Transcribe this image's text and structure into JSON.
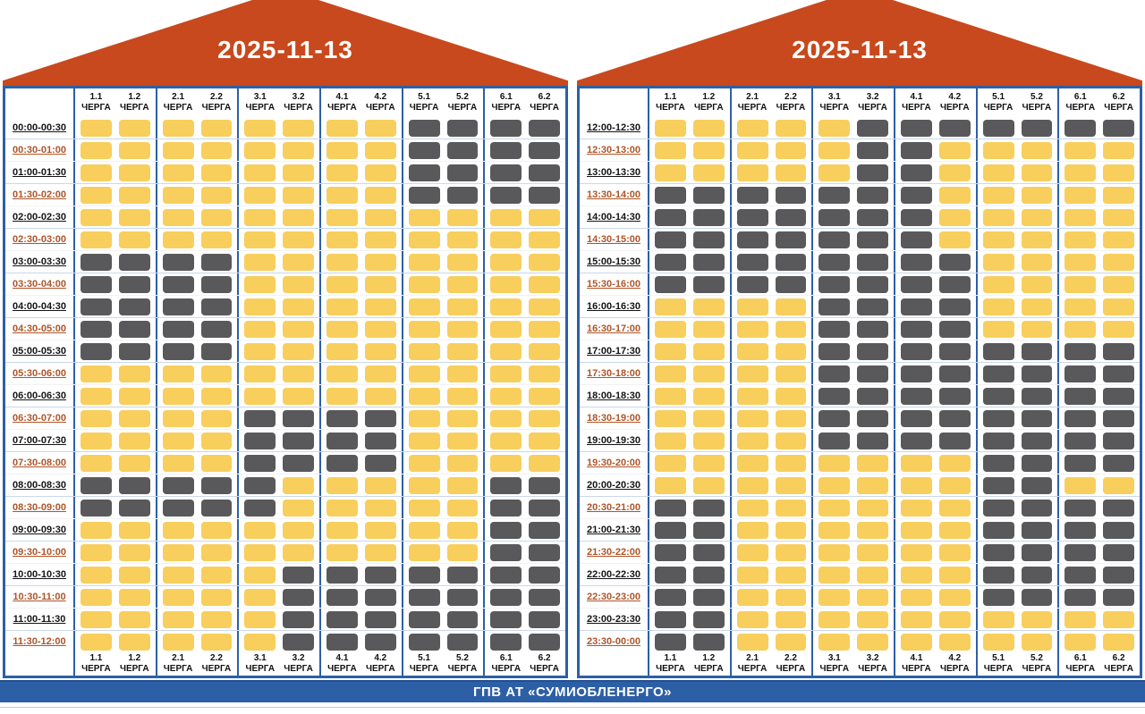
{
  "footer": {
    "label": "ГПВ АТ «СУМИОБЛЕНЕРГО»"
  },
  "column_sublabel": "ЧЕРГА",
  "colors": {
    "power_on": "#F8CE5C",
    "power_off": "#59595B",
    "frame_blue": "#2D5FA6",
    "roof_orange": "#C8491D",
    "time_alt_text": "#AD5529",
    "date_text": "#FFFFFF"
  },
  "chart_data": [
    {
      "type": "heatmap",
      "title": "2025-11-13",
      "panel_range": "00:00-12:00",
      "x_labels": [
        "1.1",
        "1.2",
        "2.1",
        "2.2",
        "3.1",
        "3.2",
        "4.1",
        "4.2",
        "5.1",
        "5.2",
        "6.1",
        "6.2"
      ],
      "y_labels": [
        "00:00-00:30",
        "00:30-01:00",
        "01:00-01:30",
        "01:30-02:00",
        "02:00-02:30",
        "02:30-03:00",
        "03:00-03:30",
        "03:30-04:00",
        "04:00-04:30",
        "04:30-05:00",
        "05:00-05:30",
        "05:30-06:00",
        "06:00-06:30",
        "06:30-07:00",
        "07:00-07:30",
        "07:30-08:00",
        "08:00-08:30",
        "08:30-09:00",
        "09:00-09:30",
        "09:30-10:00",
        "10:00-10:30",
        "10:30-11:00",
        "11:00-11:30",
        "11:30-12:00"
      ],
      "value_meaning": {
        "1": "power on (yellow)",
        "0": "outage (grey)"
      },
      "values": [
        [
          1,
          1,
          1,
          1,
          1,
          1,
          1,
          1,
          0,
          0,
          0,
          0
        ],
        [
          1,
          1,
          1,
          1,
          1,
          1,
          1,
          1,
          0,
          0,
          0,
          0
        ],
        [
          1,
          1,
          1,
          1,
          1,
          1,
          1,
          1,
          0,
          0,
          0,
          0
        ],
        [
          1,
          1,
          1,
          1,
          1,
          1,
          1,
          1,
          0,
          0,
          0,
          0
        ],
        [
          1,
          1,
          1,
          1,
          1,
          1,
          1,
          1,
          1,
          1,
          1,
          1
        ],
        [
          1,
          1,
          1,
          1,
          1,
          1,
          1,
          1,
          1,
          1,
          1,
          1
        ],
        [
          0,
          0,
          0,
          0,
          1,
          1,
          1,
          1,
          1,
          1,
          1,
          1
        ],
        [
          0,
          0,
          0,
          0,
          1,
          1,
          1,
          1,
          1,
          1,
          1,
          1
        ],
        [
          0,
          0,
          0,
          0,
          1,
          1,
          1,
          1,
          1,
          1,
          1,
          1
        ],
        [
          0,
          0,
          0,
          0,
          1,
          1,
          1,
          1,
          1,
          1,
          1,
          1
        ],
        [
          0,
          0,
          0,
          0,
          1,
          1,
          1,
          1,
          1,
          1,
          1,
          1
        ],
        [
          1,
          1,
          1,
          1,
          1,
          1,
          1,
          1,
          1,
          1,
          1,
          1
        ],
        [
          1,
          1,
          1,
          1,
          1,
          1,
          1,
          1,
          1,
          1,
          1,
          1
        ],
        [
          1,
          1,
          1,
          1,
          0,
          0,
          0,
          0,
          1,
          1,
          1,
          1
        ],
        [
          1,
          1,
          1,
          1,
          0,
          0,
          0,
          0,
          1,
          1,
          1,
          1
        ],
        [
          1,
          1,
          1,
          1,
          0,
          0,
          0,
          0,
          1,
          1,
          1,
          1
        ],
        [
          0,
          0,
          0,
          0,
          0,
          1,
          1,
          1,
          1,
          1,
          0,
          0
        ],
        [
          0,
          0,
          0,
          0,
          0,
          1,
          1,
          1,
          1,
          1,
          0,
          0
        ],
        [
          1,
          1,
          1,
          1,
          1,
          1,
          1,
          1,
          1,
          1,
          0,
          0
        ],
        [
          1,
          1,
          1,
          1,
          1,
          1,
          1,
          1,
          1,
          1,
          0,
          0
        ],
        [
          1,
          1,
          1,
          1,
          1,
          0,
          0,
          0,
          0,
          0,
          0,
          0
        ],
        [
          1,
          1,
          1,
          1,
          1,
          0,
          0,
          0,
          0,
          0,
          0,
          0
        ],
        [
          1,
          1,
          1,
          1,
          1,
          0,
          0,
          0,
          0,
          0,
          0,
          0
        ],
        [
          1,
          1,
          1,
          1,
          1,
          0,
          0,
          0,
          0,
          0,
          0,
          0
        ]
      ]
    },
    {
      "type": "heatmap",
      "title": "2025-11-13",
      "panel_range": "12:00-24:00",
      "x_labels": [
        "1.1",
        "1.2",
        "2.1",
        "2.2",
        "3.1",
        "3.2",
        "4.1",
        "4.2",
        "5.1",
        "5.2",
        "6.1",
        "6.2"
      ],
      "y_labels": [
        "12:00-12:30",
        "12:30-13:00",
        "13:00-13:30",
        "13:30-14:00",
        "14:00-14:30",
        "14:30-15:00",
        "15:00-15:30",
        "15:30-16:00",
        "16:00-16:30",
        "16:30-17:00",
        "17:00-17:30",
        "17:30-18:00",
        "18:00-18:30",
        "18:30-19:00",
        "19:00-19:30",
        "19:30-20:00",
        "20:00-20:30",
        "20:30-21:00",
        "21:00-21:30",
        "21:30-22:00",
        "22:00-22:30",
        "22:30-23:00",
        "23:00-23:30",
        "23:30-00:00"
      ],
      "value_meaning": {
        "1": "power on (yellow)",
        "0": "outage (grey)"
      },
      "values": [
        [
          1,
          1,
          1,
          1,
          1,
          0,
          0,
          0,
          0,
          0,
          0,
          0
        ],
        [
          1,
          1,
          1,
          1,
          1,
          0,
          0,
          1,
          1,
          1,
          1,
          1
        ],
        [
          1,
          1,
          1,
          1,
          1,
          0,
          0,
          1,
          1,
          1,
          1,
          1
        ],
        [
          0,
          0,
          0,
          0,
          0,
          0,
          0,
          1,
          1,
          1,
          1,
          1
        ],
        [
          0,
          0,
          0,
          0,
          0,
          0,
          0,
          1,
          1,
          1,
          1,
          1
        ],
        [
          0,
          0,
          0,
          0,
          0,
          0,
          0,
          1,
          1,
          1,
          1,
          1
        ],
        [
          0,
          0,
          0,
          0,
          0,
          0,
          0,
          0,
          1,
          1,
          1,
          1
        ],
        [
          0,
          0,
          0,
          0,
          0,
          0,
          0,
          0,
          1,
          1,
          1,
          1
        ],
        [
          1,
          1,
          1,
          1,
          0,
          0,
          0,
          0,
          1,
          1,
          1,
          1
        ],
        [
          1,
          1,
          1,
          1,
          0,
          0,
          0,
          0,
          1,
          1,
          1,
          1
        ],
        [
          1,
          1,
          1,
          1,
          0,
          0,
          0,
          0,
          0,
          0,
          0,
          0
        ],
        [
          1,
          1,
          1,
          1,
          0,
          0,
          0,
          0,
          0,
          0,
          0,
          0
        ],
        [
          1,
          1,
          1,
          1,
          0,
          0,
          0,
          0,
          0,
          0,
          0,
          0
        ],
        [
          1,
          1,
          1,
          1,
          0,
          0,
          0,
          0,
          0,
          0,
          0,
          0
        ],
        [
          1,
          1,
          1,
          1,
          0,
          0,
          0,
          0,
          0,
          0,
          0,
          0
        ],
        [
          1,
          1,
          1,
          1,
          1,
          1,
          1,
          1,
          0,
          0,
          0,
          0
        ],
        [
          1,
          1,
          1,
          1,
          1,
          1,
          1,
          1,
          0,
          0,
          1,
          1
        ],
        [
          0,
          0,
          1,
          1,
          1,
          1,
          1,
          1,
          0,
          0,
          0,
          0
        ],
        [
          0,
          0,
          1,
          1,
          1,
          1,
          1,
          1,
          0,
          0,
          0,
          0
        ],
        [
          0,
          0,
          1,
          1,
          1,
          1,
          1,
          1,
          0,
          0,
          0,
          0
        ],
        [
          0,
          0,
          1,
          1,
          1,
          1,
          1,
          1,
          0,
          0,
          0,
          0
        ],
        [
          0,
          0,
          1,
          1,
          1,
          1,
          1,
          1,
          0,
          0,
          0,
          0
        ],
        [
          0,
          0,
          1,
          1,
          1,
          1,
          1,
          1,
          1,
          1,
          1,
          1
        ],
        [
          0,
          0,
          1,
          1,
          1,
          1,
          1,
          1,
          1,
          1,
          1,
          1
        ]
      ]
    }
  ]
}
